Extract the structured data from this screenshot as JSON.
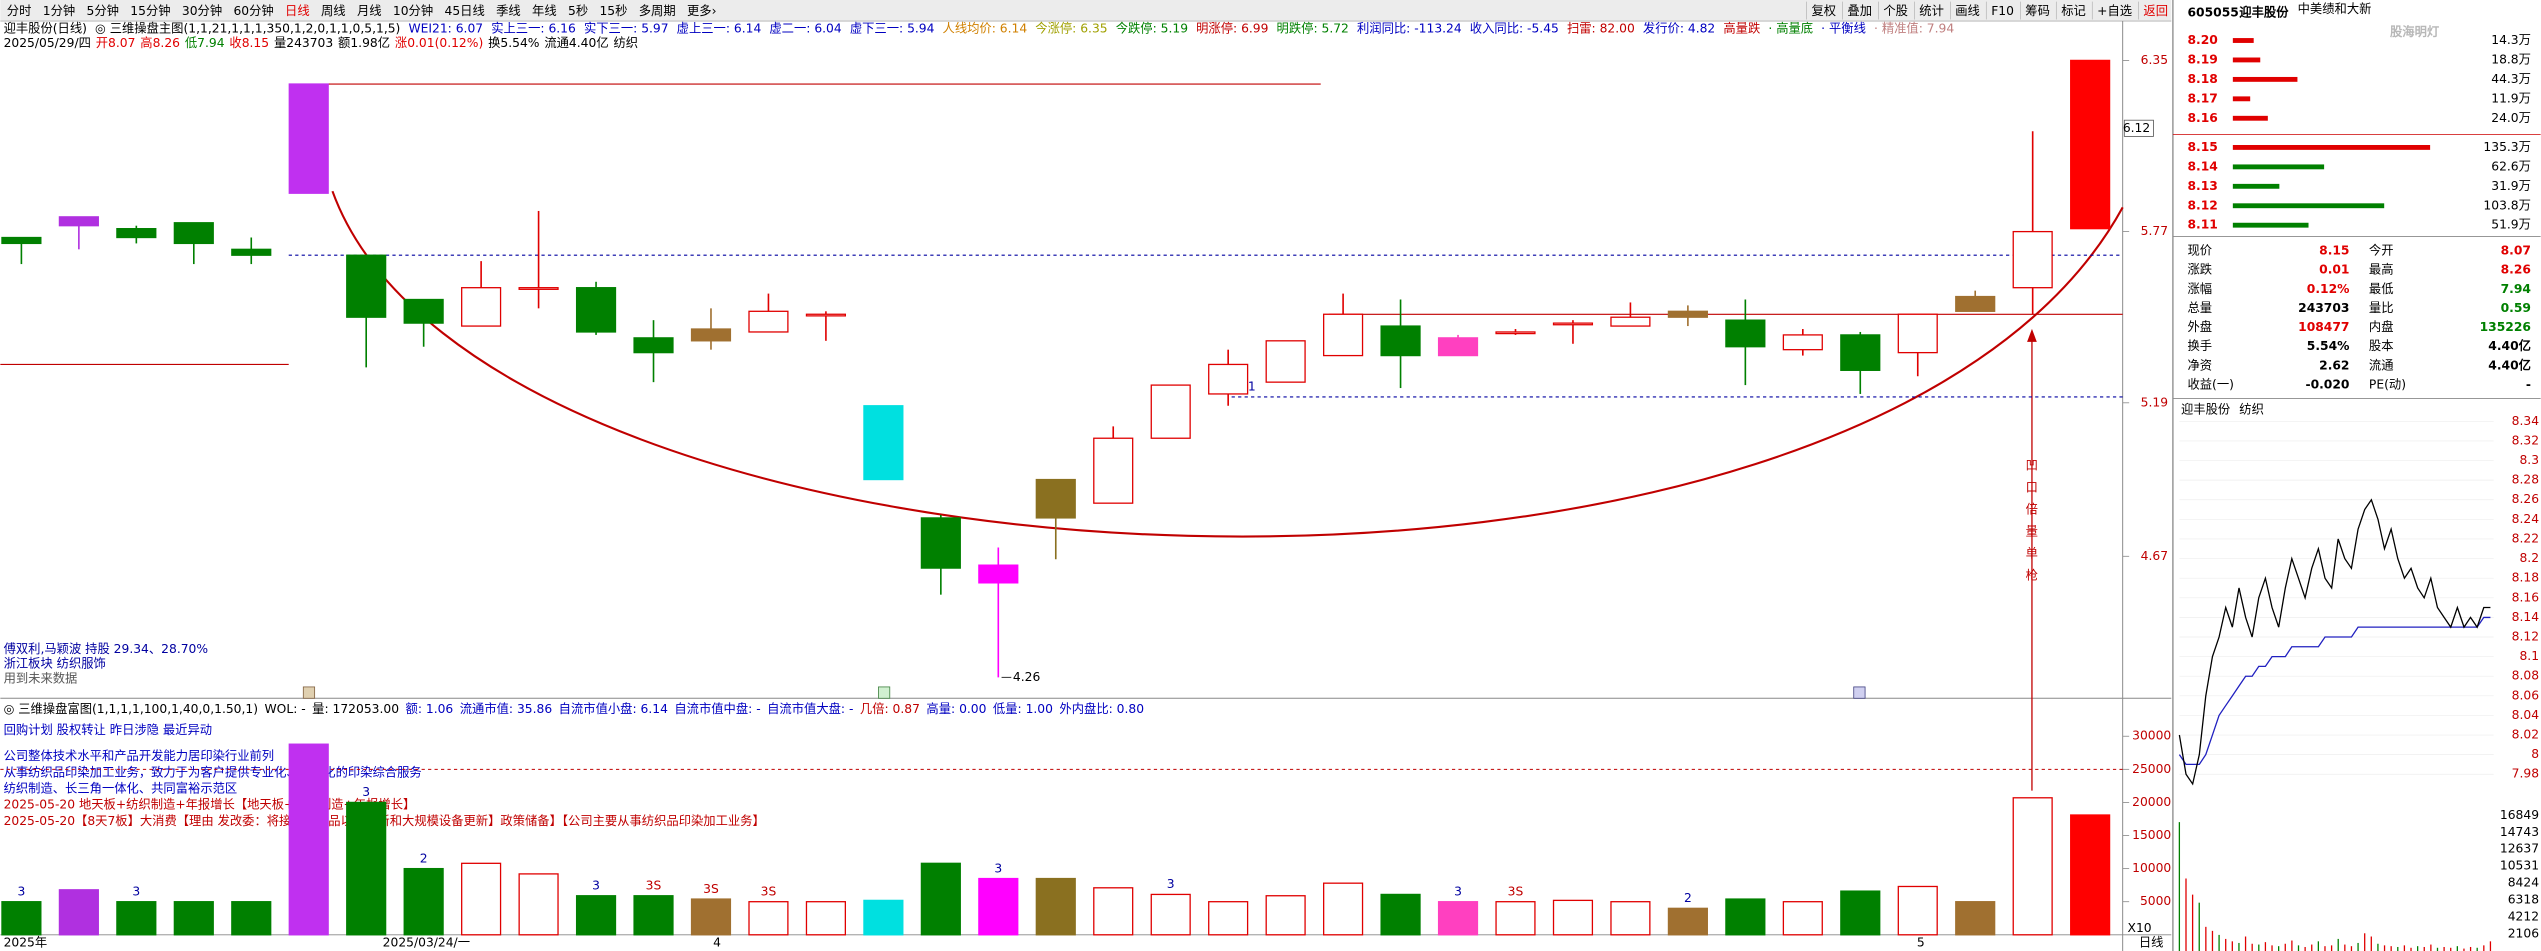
{
  "toolbar": {
    "tabs": [
      "分时",
      "1分钟",
      "5分钟",
      "15分钟",
      "30分钟",
      "60分钟",
      "日线",
      "周线",
      "月线",
      "10分钟",
      "45日线",
      "季线",
      "年线",
      "5秒",
      "15秒",
      "多周期",
      "更多›"
    ],
    "active": 6,
    "buttons": [
      "复权",
      "叠加",
      "个股",
      "统计",
      "画线",
      "F10",
      "筹码",
      "标记",
      "+自选",
      "返回"
    ]
  },
  "stock": {
    "code": "605055",
    "name": "迎丰股份",
    "extra": "中美绩和大新",
    "watermark": "股海明灯"
  },
  "main": {
    "title_segments": [
      {
        "text": "迎丰股份(日线)",
        "color": "#000000"
      },
      {
        "text": "◎ 三维操盘主图(1,1,21,1,1,1,350,1,2,0,1,1,0,5,1,5)",
        "color": "#000000"
      },
      {
        "text": "WEI21: 6.07",
        "color": "#0000c0"
      },
      {
        "text": "实上三一: 6.16",
        "color": "#0000c0"
      },
      {
        "text": "实下三一: 5.97",
        "color": "#0000c0"
      },
      {
        "text": "虚上三一: 6.14",
        "color": "#0000c0"
      },
      {
        "text": "虚二一: 6.04",
        "color": "#0000c0"
      },
      {
        "text": "虚下三一: 5.94",
        "color": "#0000c0"
      },
      {
        "text": "人线均价: 6.14",
        "color": "#d08000"
      },
      {
        "text": "今涨停: 6.35",
        "color": "#a0a000"
      },
      {
        "text": "今跌停: 5.19",
        "color": "#008000"
      },
      {
        "text": "明涨停: 6.99",
        "color": "#c00000"
      },
      {
        "text": "明跌停: 5.72",
        "color": "#008000"
      },
      {
        "text": "利润同比: -113.24",
        "color": "#0000c0"
      },
      {
        "text": "收入同比: -5.45",
        "color": "#0000c0"
      },
      {
        "text": "扫雷: 82.00",
        "color": "#c00000"
      },
      {
        "text": "发行价: 4.82",
        "color": "#0000c0"
      },
      {
        "text": "高量跌",
        "color": "#c00000"
      },
      {
        "text": "· 高量底",
        "color": "#008000"
      },
      {
        "text": "· 平衡线",
        "color": "#0000c0"
      },
      {
        "text": "· 精准值: 7.94",
        "color": "#c08080"
      }
    ],
    "ohlc_segments": [
      {
        "text": "2025/05/29/四",
        "color": "#000000"
      },
      {
        "text": "开8.07",
        "color": "#e00000"
      },
      {
        "text": "高8.26",
        "color": "#e00000"
      },
      {
        "text": "低7.94",
        "color": "#008000"
      },
      {
        "text": "收8.15",
        "color": "#e00000"
      },
      {
        "text": "量243703",
        "color": "#000000"
      },
      {
        "text": "额1.98亿",
        "color": "#000000"
      },
      {
        "text": "涨0.01(0.12%)",
        "color": "#e00000"
      },
      {
        "text": "换5.54%",
        "color": "#000000"
      },
      {
        "text": "流通4.40亿",
        "color": "#000000"
      },
      {
        "text": "纺织",
        "color": "#000000"
      }
    ],
    "notes": [
      "傅双利,马颖波 持股 29.34、28.70%",
      "浙江板块       纺织服饰",
      "用到未来数据"
    ],
    "ylim": [
      4.2,
      6.39
    ],
    "yticks": [
      6.35,
      5.77,
      5.19,
      4.67
    ],
    "marker": 6.12,
    "candles": {
      "open": [
        5.75,
        5.82,
        5.78,
        5.8,
        5.71,
        6.27,
        5.69,
        5.54,
        5.45,
        5.58,
        5.58,
        5.41,
        5.4,
        5.43,
        5.49,
        5.18,
        4.8,
        4.64,
        4.8,
        4.85,
        5.07,
        5.22,
        5.26,
        5.35,
        5.45,
        5.35,
        5.43,
        5.46,
        5.45,
        5.48,
        5.47,
        5.37,
        5.42,
        5.36,
        5.5,
        5.58,
        5.78
      ],
      "high": [
        5.75,
        5.82,
        5.79,
        5.8,
        5.75,
        6.27,
        5.69,
        5.54,
        5.67,
        5.84,
        5.6,
        5.47,
        5.51,
        5.56,
        5.5,
        5.18,
        4.81,
        4.7,
        4.93,
        5.11,
        5.25,
        5.37,
        5.4,
        5.56,
        5.54,
        5.42,
        5.44,
        5.47,
        5.53,
        5.52,
        5.54,
        5.44,
        5.43,
        5.49,
        5.57,
        6.11,
        6.35
      ],
      "low": [
        5.66,
        5.71,
        5.73,
        5.66,
        5.66,
        5.9,
        5.31,
        5.38,
        5.45,
        5.51,
        5.42,
        5.26,
        5.37,
        5.43,
        5.4,
        4.93,
        4.54,
        4.26,
        4.66,
        4.85,
        5.07,
        5.18,
        5.26,
        5.35,
        5.24,
        5.35,
        5.42,
        5.39,
        5.45,
        5.45,
        5.25,
        5.35,
        5.22,
        5.28,
        5.5,
        5.49,
        5.78
      ],
      "close": [
        5.73,
        5.79,
        5.75,
        5.73,
        5.69,
        5.9,
        5.48,
        5.46,
        5.58,
        5.58,
        5.43,
        5.36,
        5.44,
        5.5,
        5.49,
        4.93,
        4.63,
        4.58,
        4.93,
        5.07,
        5.25,
        5.32,
        5.4,
        5.49,
        5.35,
        5.41,
        5.43,
        5.46,
        5.48,
        5.5,
        5.38,
        5.42,
        5.3,
        5.49,
        5.55,
        5.77,
        6.35
      ],
      "fills": [
        "#008000",
        "#b030e0",
        "#008000",
        "#008000",
        "#008000",
        "#c030f0",
        "#008000",
        "#008000",
        null,
        null,
        "#008000",
        "#008000",
        "#a07030",
        null,
        null,
        "#00e0e0",
        "#008000",
        "#ff00ff",
        "#8a7020",
        null,
        null,
        null,
        null,
        null,
        "#008000",
        "#ff40c0",
        null,
        null,
        null,
        "#a07030",
        "#008000",
        null,
        "#008000",
        null,
        "#a07030",
        null,
        "#ff0000"
      ]
    },
    "levels": [
      {
        "value": 6.27,
        "color": "#c00000",
        "dash": false
      },
      {
        "value": 5.69,
        "color": "#0000a0",
        "dash": true
      },
      {
        "value": 5.49,
        "color": "#c00000",
        "dash": false
      },
      {
        "value": 5.32,
        "color": "#c00000",
        "dash": false
      },
      {
        "value": 5.21,
        "color": "#0000a0",
        "dash": true
      }
    ],
    "signal": "凹口倍量单枪",
    "dates": [
      "2025年",
      "2025/03/24/一",
      "4",
      "5"
    ],
    "period": "日线"
  },
  "volume": {
    "header_segments": [
      {
        "text": "◎ 三维操盘富图(1,1,1,1,100,1,40,0,1.50,1)",
        "color": "#000000"
      },
      {
        "text": "WOL: -",
        "color": "#000000"
      },
      {
        "text": "量: 172053.00",
        "color": "#000000"
      },
      {
        "text": "额: 1.06",
        "color": "#0000c0"
      },
      {
        "text": "流通市值: 35.86",
        "color": "#0000c0"
      },
      {
        "text": "自流市值小盘: 6.14",
        "color": "#0000c0"
      },
      {
        "text": "自流市值中盘: -",
        "color": "#0000c0"
      },
      {
        "text": "自流市值大盘: -",
        "color": "#0000c0"
      },
      {
        "text": "几倍: 0.87",
        "color": "#c00000"
      },
      {
        "text": "高量: 0.00",
        "color": "#0000c0"
      },
      {
        "text": "低量: 1.00",
        "color": "#0000c0"
      },
      {
        "text": "外内盘比: 0.80",
        "color": "#0000c0"
      }
    ],
    "lines": [
      {
        "text": "回购计划 股权转让 昨日涉隐 最近异动",
        "color": "#0000c0"
      },
      {
        "text": "公司整体技术水平和产品开发能力居印染行业前列",
        "color": "#0000c0"
      },
      {
        "text": "从事纺织品印染加工业务，致力于为客户提供专业化、个性化的印染综合服务",
        "color": "#0000c0"
      },
      {
        "text": "纺织制造、长三角一体化、共同富裕示范区",
        "color": "#0000c0"
      },
      {
        "text": "2025-05-20 地天板+纺织制造+年报增长【地天板+纺织制造+年报增长】",
        "color": "#c00000"
      },
      {
        "text": "2025-05-20【8天7板】大消费【理由 发改委：将接续消费品以旧换新和大规模设备更新】政策储备】【公司主要从事纺织品印染加工业务】",
        "color": "#c00000"
      }
    ],
    "values": [
      5000,
      6800,
      5000,
      5000,
      5000,
      28800,
      20000,
      10000,
      10800,
      9200,
      5900,
      5900,
      5400,
      5000,
      5000,
      5200,
      10800,
      8500,
      8500,
      7100,
      6100,
      5000,
      5900,
      7800,
      6100,
      5000,
      5000,
      5200,
      5000,
      4000,
      5400,
      5000,
      6600,
      7300,
      5000,
      20700,
      18100
    ],
    "marks": [
      "3",
      null,
      "3",
      null,
      null,
      null,
      "3",
      "2",
      null,
      null,
      "3",
      "3S",
      "3S",
      "3S",
      null,
      null,
      null,
      "3",
      null,
      null,
      "3",
      null,
      null,
      null,
      null,
      "3",
      "3S",
      null,
      null,
      "2",
      null,
      null,
      null,
      null,
      null,
      null,
      null
    ],
    "ylim": [
      0,
      32800
    ],
    "yticks": [
      30000,
      25000,
      20000,
      15000,
      10000,
      5000
    ],
    "level": 25000,
    "scale": "X10"
  },
  "orderbook": {
    "asks": {
      "prices": [
        "8.20",
        "8.19",
        "8.18",
        "8.17",
        "8.16"
      ],
      "values": [
        14.3,
        18.8,
        44.3,
        11.9,
        24.0
      ],
      "value_labels": [
        "14.3万",
        "18.8万",
        "44.3万",
        "11.9万",
        "24.0万"
      ]
    },
    "bids": {
      "prices": [
        "8.15",
        "8.14",
        "8.13",
        "8.12",
        "8.11"
      ],
      "values": [
        135.3,
        62.6,
        31.9,
        103.8,
        51.9
      ],
      "value_labels": [
        "135.3万",
        "62.6万",
        "31.9万",
        "103.8万",
        "51.9万"
      ]
    }
  },
  "quote": {
    "rows": [
      [
        "现价",
        "8.15",
        "今开",
        "8.07"
      ],
      [
        "涨跌",
        "0.01",
        "最高",
        "8.26"
      ],
      [
        "涨幅",
        "0.12%",
        "最低",
        "7.94"
      ],
      [
        "总量",
        "243703",
        "量比",
        "0.59"
      ],
      [
        "外盘",
        "108477",
        "内盘",
        "135226"
      ],
      [
        "换手",
        "5.54%",
        "股本",
        "4.40亿"
      ],
      [
        "净资",
        "2.62",
        "流通",
        "4.40亿"
      ],
      [
        "收益(一)",
        "-0.020",
        "PE(动)",
        "-"
      ]
    ],
    "colors": [
      [
        "#e00000",
        "#e00000"
      ],
      [
        "#e00000",
        "#e00000"
      ],
      [
        "#e00000",
        "#008000"
      ],
      [
        "#000000",
        "#008000"
      ],
      [
        "#e00000",
        "#008000"
      ],
      [
        "#000000",
        "#000000"
      ],
      [
        "#000000",
        "#000000"
      ],
      [
        "#000000",
        "#000000"
      ]
    ]
  },
  "intraday": {
    "title": [
      "迎丰股份",
      "纺织"
    ],
    "price": [
      8.02,
      7.98,
      7.97,
      8.0,
      8.06,
      8.1,
      8.12,
      8.15,
      8.13,
      8.17,
      8.14,
      8.12,
      8.16,
      8.18,
      8.15,
      8.13,
      8.17,
      8.2,
      8.18,
      8.16,
      8.19,
      8.21,
      8.18,
      8.17,
      8.22,
      8.2,
      8.19,
      8.23,
      8.25,
      8.26,
      8.24,
      8.21,
      8.23,
      8.2,
      8.18,
      8.19,
      8.17,
      8.16,
      8.18,
      8.15,
      8.14,
      8.13,
      8.15,
      8.13,
      8.14,
      8.13,
      8.15,
      8.15
    ],
    "avg": [
      8.0,
      7.99,
      7.99,
      7.99,
      8.0,
      8.02,
      8.04,
      8.05,
      8.06,
      8.07,
      8.08,
      8.08,
      8.09,
      8.09,
      8.1,
      8.1,
      8.1,
      8.11,
      8.11,
      8.11,
      8.11,
      8.11,
      8.12,
      8.12,
      8.12,
      8.12,
      8.12,
      8.13,
      8.13,
      8.13,
      8.13,
      8.13,
      8.13,
      8.13,
      8.13,
      8.13,
      8.13,
      8.13,
      8.13,
      8.13,
      8.13,
      8.13,
      8.13,
      8.13,
      8.13,
      8.13,
      8.14,
      8.14
    ],
    "volumes": [
      16000,
      9000,
      7000,
      6000,
      3000,
      2500,
      2000,
      1500,
      1200,
      1000,
      1800,
      900,
      800,
      1100,
      700,
      600,
      900,
      1300,
      700,
      500,
      800,
      1200,
      600,
      700,
      1500,
      800,
      600,
      1000,
      2200,
      1800,
      900,
      700,
      600,
      500,
      700,
      400,
      600,
      500,
      800,
      400,
      500,
      400,
      600,
      300,
      500,
      400,
      700,
      1200
    ],
    "ylim": [
      7.96,
      8.35
    ],
    "yticks": [
      8.34,
      8.32,
      8.3,
      8.28,
      8.26,
      8.24,
      8.22,
      8.2,
      8.18,
      8.16,
      8.14,
      8.12,
      8.1,
      8.08,
      8.06,
      8.04,
      8.02,
      8,
      7.98
    ],
    "vlim": [
      0,
      17500
    ],
    "vticks": [
      16849,
      14743,
      12637,
      10531,
      8424,
      6318,
      4212,
      2106
    ]
  }
}
